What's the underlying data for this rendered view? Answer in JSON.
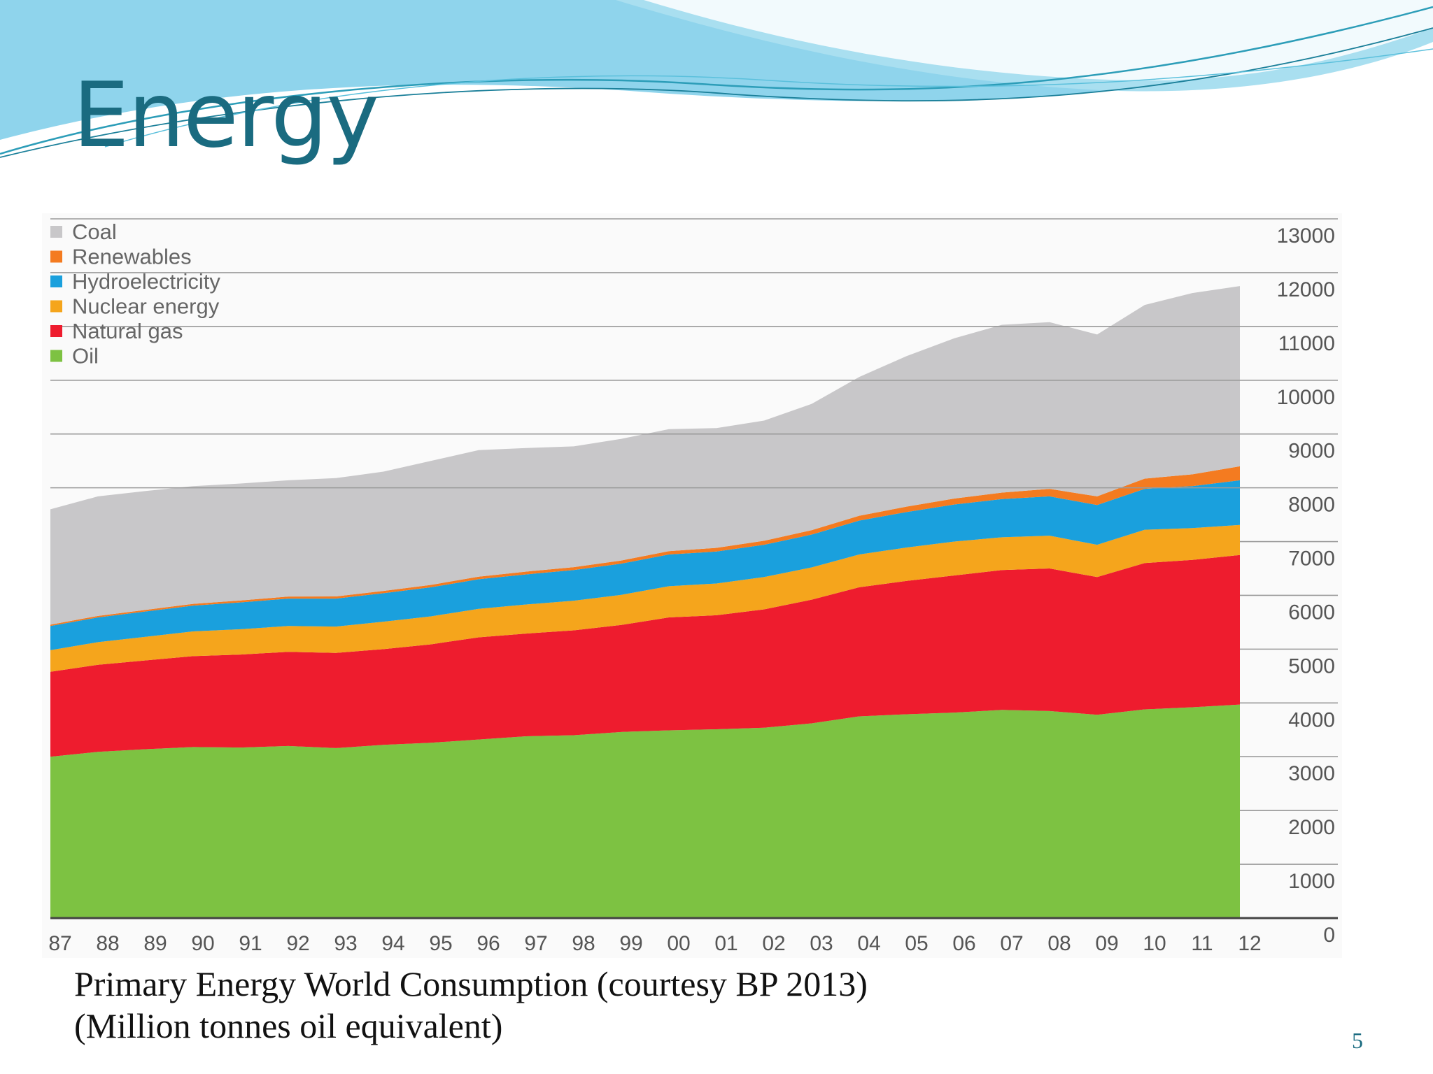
{
  "slide": {
    "title": "Energy",
    "caption_line_1": "Primary Energy World Consumption (courtesy BP 2013)",
    "caption_line_2": "(Million tonnes oil equivalent)",
    "page_number": "5"
  },
  "colors": {
    "title": "#1a6b80",
    "wave_light": "#a9dff0",
    "wave_mid": "#6cc6e2",
    "wave_line": "#2c9db8"
  },
  "chart_data": {
    "type": "area",
    "stacked": true,
    "x": [
      "87",
      "88",
      "89",
      "90",
      "91",
      "92",
      "93",
      "94",
      "95",
      "96",
      "97",
      "98",
      "99",
      "00",
      "01",
      "02",
      "03",
      "04",
      "05",
      "06",
      "07",
      "08",
      "09",
      "10",
      "11",
      "12"
    ],
    "yticks": [
      "13000",
      "12000",
      "11000",
      "10000",
      "9000",
      "8000",
      "7000",
      "6000",
      "5000",
      "4000",
      "3000",
      "2000",
      "1000",
      "0"
    ],
    "ylim": [
      0,
      13000
    ],
    "y_axis_side": "right",
    "legend_position": "top-left",
    "grid": true,
    "series": [
      {
        "name": "Oil",
        "color": "#7dc242",
        "values": [
          3000,
          3090,
          3140,
          3180,
          3170,
          3200,
          3160,
          3220,
          3260,
          3320,
          3380,
          3400,
          3460,
          3490,
          3510,
          3540,
          3620,
          3750,
          3790,
          3820,
          3870,
          3850,
          3780,
          3880,
          3920,
          3970
        ]
      },
      {
        "name": "Natural gas",
        "color": "#ee1c2e",
        "values": [
          1580,
          1620,
          1650,
          1690,
          1730,
          1750,
          1770,
          1780,
          1830,
          1900,
          1910,
          1950,
          1990,
          2100,
          2120,
          2200,
          2300,
          2400,
          2480,
          2550,
          2600,
          2650,
          2560,
          2720,
          2740,
          2780
        ]
      },
      {
        "name": "Nuclear energy",
        "color": "#f5a51c",
        "values": [
          400,
          420,
          440,
          460,
          470,
          480,
          490,
          510,
          520,
          530,
          540,
          550,
          560,
          580,
          590,
          600,
          600,
          610,
          620,
          630,
          610,
          610,
          600,
          620,
          590,
          560
        ]
      },
      {
        "name": "Hydroelectricity",
        "color": "#1aa0dd",
        "values": [
          450,
          460,
          470,
          480,
          500,
          510,
          520,
          530,
          540,
          550,
          560,
          570,
          580,
          590,
          595,
          600,
          610,
          630,
          660,
          690,
          710,
          730,
          740,
          760,
          780,
          830
        ]
      },
      {
        "name": "Renewables",
        "color": "#f47b20",
        "values": [
          25,
          28,
          30,
          32,
          35,
          38,
          40,
          42,
          45,
          48,
          52,
          55,
          58,
          62,
          68,
          75,
          82,
          90,
          100,
          110,
          120,
          140,
          160,
          190,
          220,
          260
        ]
      },
      {
        "name": "Coal",
        "color": "#c8c7c9",
        "values": [
          2145,
          2222,
          2210,
          2188,
          2175,
          2162,
          2200,
          2218,
          2305,
          2352,
          2298,
          2245,
          2262,
          2268,
          2227,
          2235,
          2348,
          2580,
          2800,
          2980,
          3120,
          3100,
          3010,
          3230,
          3370,
          3350
        ]
      }
    ]
  }
}
